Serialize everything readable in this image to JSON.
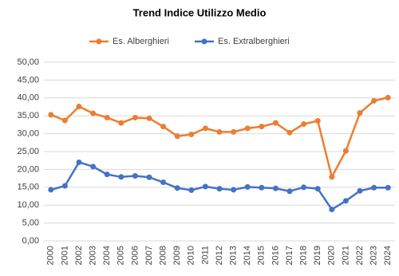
{
  "chart_data": {
    "type": "line",
    "title": "Trend Indice Utilizzo Medio",
    "categories": [
      "2000",
      "2001",
      "2002",
      "2003",
      "2004",
      "2005",
      "2006",
      "2007",
      "2008",
      "2009",
      "2010",
      "2011",
      "2012",
      "2013",
      "2014",
      "2015",
      "2016",
      "2017",
      "2018",
      "2019",
      "2020",
      "2021",
      "2022",
      "2023",
      "2024"
    ],
    "series": [
      {
        "name": "Es. Alberghieri",
        "color": "#ed7d31",
        "values": [
          35.3,
          33.7,
          37.6,
          35.7,
          34.5,
          33.0,
          34.5,
          34.3,
          32.0,
          29.3,
          29.8,
          31.5,
          30.5,
          30.5,
          31.5,
          32.0,
          33.0,
          30.3,
          32.7,
          33.6,
          17.9,
          25.2,
          35.8,
          39.2,
          40.1
        ]
      },
      {
        "name": "Es. Extralberghieri",
        "color": "#4472c4",
        "values": [
          14.3,
          15.4,
          22.0,
          20.8,
          18.6,
          17.9,
          18.2,
          17.8,
          16.4,
          14.8,
          14.2,
          15.2,
          14.6,
          14.3,
          15.1,
          14.9,
          14.7,
          13.9,
          15.0,
          14.6,
          8.8,
          11.2,
          14.0,
          14.9,
          14.9
        ]
      }
    ],
    "ylim": [
      0,
      50
    ],
    "yticks": [
      {
        "value": 0,
        "label": "0,00"
      },
      {
        "value": 5,
        "label": "5,00"
      },
      {
        "value": 10,
        "label": "10,00"
      },
      {
        "value": 15,
        "label": "15,00"
      },
      {
        "value": 20,
        "label": "20,00"
      },
      {
        "value": 25,
        "label": "25,00"
      },
      {
        "value": 30,
        "label": "30,00"
      },
      {
        "value": 35,
        "label": "35,00"
      },
      {
        "value": 40,
        "label": "40,00"
      },
      {
        "value": 45,
        "label": "45,00"
      },
      {
        "value": 50,
        "label": "50,00"
      }
    ],
    "grid": true,
    "legend": "top"
  }
}
